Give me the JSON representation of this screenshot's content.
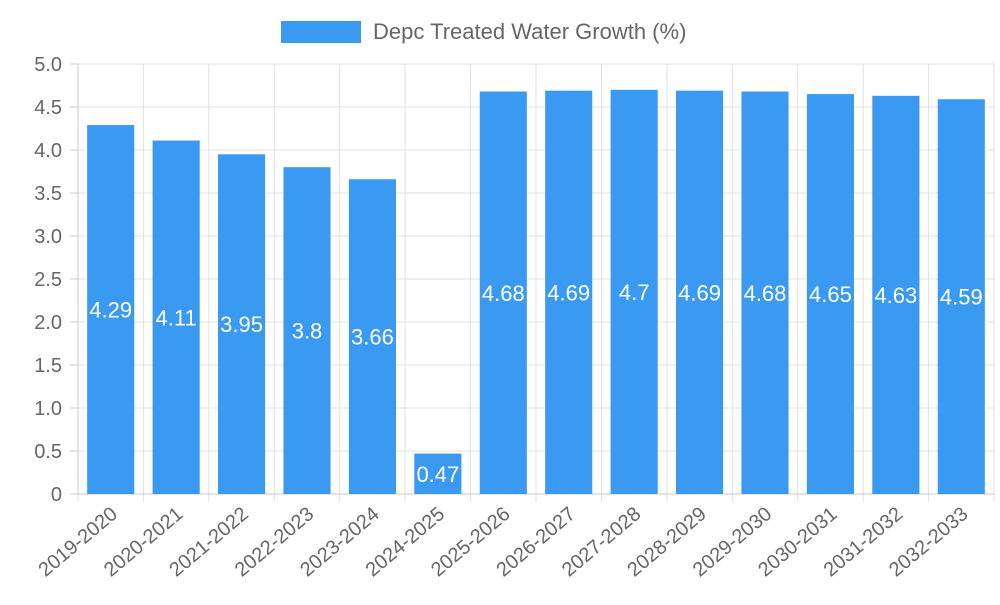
{
  "chart_data": {
    "type": "bar",
    "categories": [
      "2019-2020",
      "2020-2021",
      "2021-2022",
      "2022-2023",
      "2023-2024",
      "2024-2025",
      "2025-2026",
      "2026-2027",
      "2027-2028",
      "2028-2029",
      "2029-2030",
      "2030-2031",
      "2031-2032",
      "2032-2033"
    ],
    "series": [
      {
        "name": "Depc Treated Water Growth (%)",
        "values": [
          4.29,
          4.11,
          3.95,
          3.8,
          3.66,
          0.47,
          4.68,
          4.69,
          4.7,
          4.69,
          4.68,
          4.65,
          4.63,
          4.59
        ],
        "data_labels": [
          "4.29",
          "4.11",
          "3.95",
          "3.8",
          "3.66",
          "0.47",
          "4.68",
          "4.69",
          "4.7",
          "4.69",
          "4.68",
          "4.65",
          "4.63",
          "4.59"
        ],
        "color": "#3a99f0"
      }
    ],
    "y_ticks": [
      "0",
      "0.5",
      "1.0",
      "1.5",
      "2.0",
      "2.5",
      "3.0",
      "3.5",
      "4.0",
      "4.5",
      "5.0"
    ],
    "ylim": [
      0,
      5
    ],
    "xlabel": "",
    "ylabel": "",
    "grid": true,
    "legend_position": "top-center",
    "colors": {
      "bar": "#3a99f0",
      "grid": "#e1e1e1",
      "axis": "#c8c8c8",
      "tick_text": "#666666",
      "data_label": "#ffffff",
      "legend_text": "#666666"
    }
  }
}
